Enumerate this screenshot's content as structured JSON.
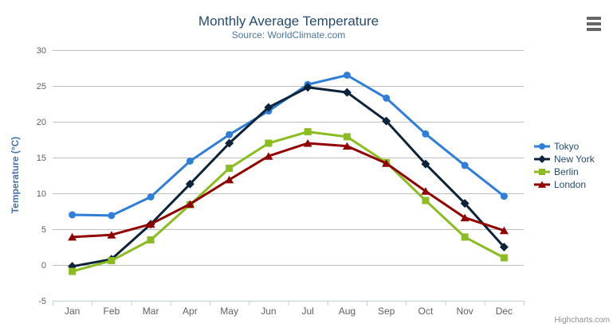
{
  "chart_data": {
    "type": "line",
    "title": "Monthly Average Temperature",
    "subtitle": "Source: WorldClimate.com",
    "xlabel": "",
    "ylabel": "Temperature (°C)",
    "ylim": [
      -5,
      30
    ],
    "yticks": [
      -5,
      0,
      5,
      10,
      15,
      20,
      25,
      30
    ],
    "grid": true,
    "legend_position": "right",
    "categories": [
      "Jan",
      "Feb",
      "Mar",
      "Apr",
      "May",
      "Jun",
      "Jul",
      "Aug",
      "Sep",
      "Oct",
      "Nov",
      "Dec"
    ],
    "series": [
      {
        "name": "Tokyo",
        "color": "#2f7ed8",
        "marker": "circle",
        "values": [
          7.0,
          6.9,
          9.5,
          14.5,
          18.2,
          21.5,
          25.2,
          26.5,
          23.3,
          18.3,
          13.9,
          9.6
        ]
      },
      {
        "name": "New York",
        "color": "#0d233a",
        "marker": "diamond",
        "values": [
          -0.2,
          0.8,
          5.7,
          11.3,
          17.0,
          22.0,
          24.8,
          24.1,
          20.1,
          14.1,
          8.6,
          2.5
        ]
      },
      {
        "name": "Berlin",
        "color": "#8bbc21",
        "marker": "square",
        "values": [
          -0.9,
          0.6,
          3.5,
          8.4,
          13.5,
          17.0,
          18.6,
          17.9,
          14.3,
          9.0,
          3.9,
          1.0
        ]
      },
      {
        "name": "London",
        "color": "#910000",
        "marker": "triangle",
        "values": [
          3.9,
          4.2,
          5.7,
          8.5,
          11.9,
          15.2,
          17.0,
          16.6,
          14.2,
          10.3,
          6.6,
          4.8
        ]
      }
    ]
  },
  "styling": {
    "grid_line_color": "#c0c0c0",
    "axis_line_color": "#c0d0e0",
    "axis_label_color": "#606060",
    "legend_text_color": "#274b6d"
  },
  "credits_label": "Highcharts.com"
}
